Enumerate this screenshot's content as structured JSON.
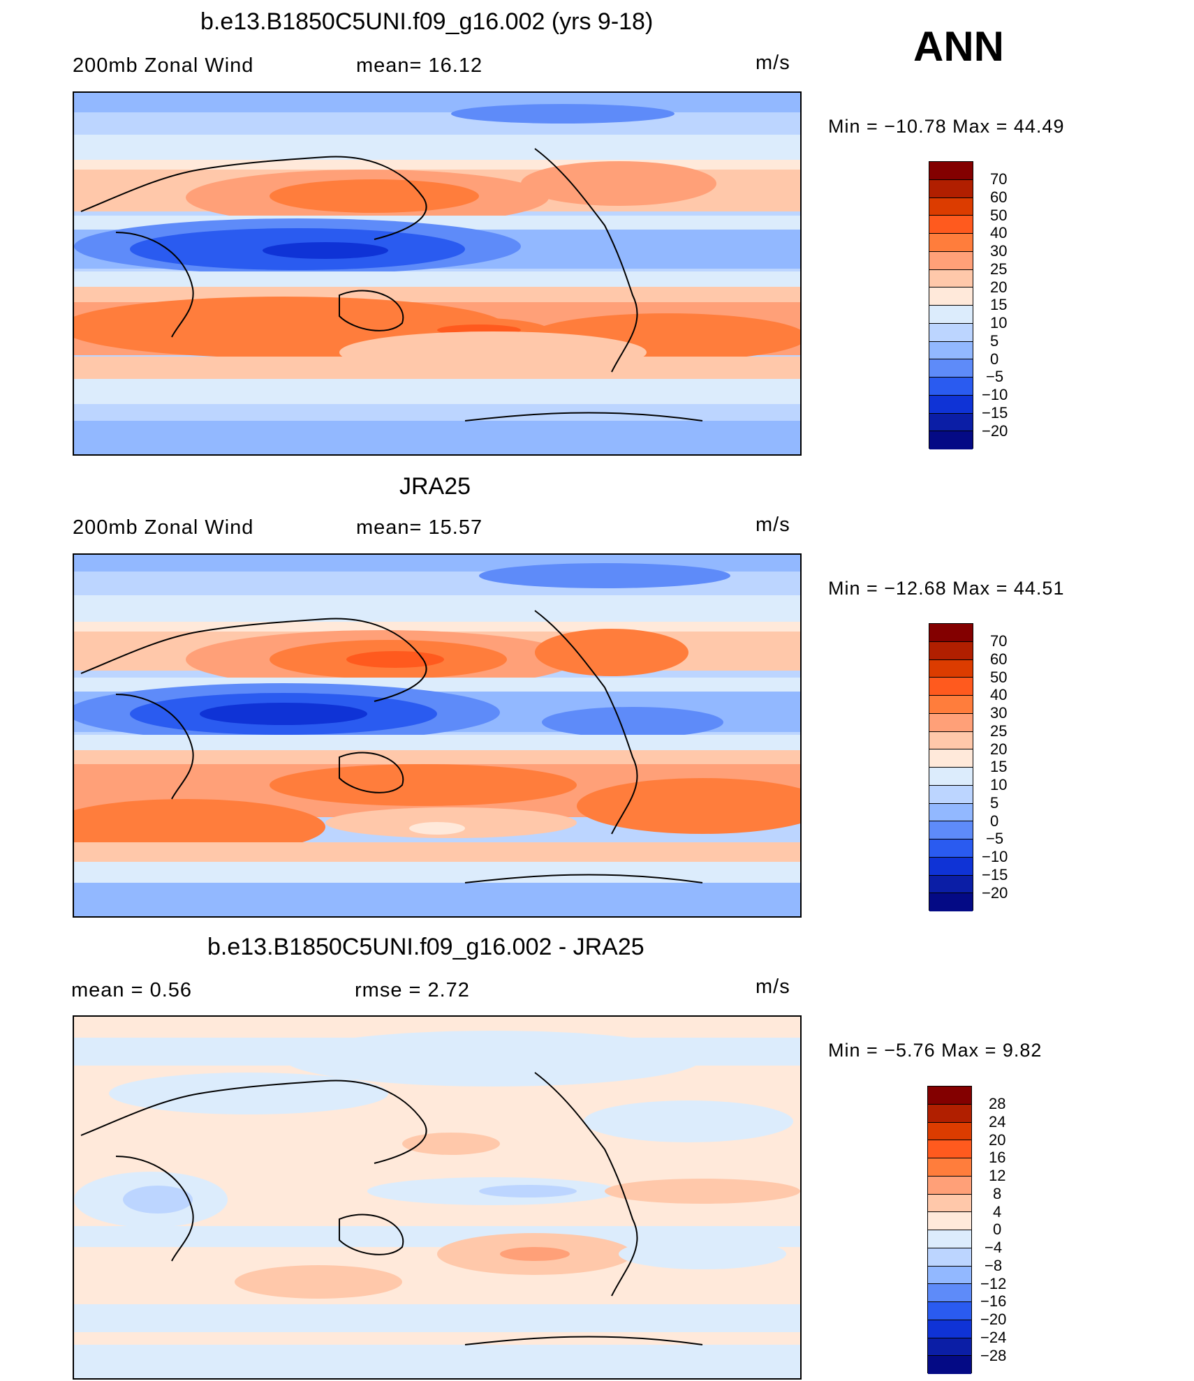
{
  "season": "ANN",
  "units": "m/s",
  "coast_color": "#000000",
  "panels": [
    {
      "title": "b.e13.B1850C5UNI.f09_g16.002 (yrs 9-18)",
      "left_label": "200mb  Zonal  Wind",
      "center_label": "mean=   16.12",
      "right_label": "m/s",
      "min_max": "Min  =  −10.78  Max  =    44.49",
      "colorbar": {
        "labels": [
          "70",
          "60",
          "50",
          "40",
          "30",
          "25",
          "20",
          "15",
          "10",
          "5",
          "0",
          "−5",
          "−10",
          "−15",
          "−20"
        ],
        "colors": [
          "#830000",
          "#b11f00",
          "#dc3c00",
          "#ff5a1e",
          "#ff7d3c",
          "#ffa078",
          "#ffc8aa",
          "#ffe9da",
          "#dcecfc",
          "#bcd5ff",
          "#92b8ff",
          "#5e8bf9",
          "#2a5bf0",
          "#0f33d6",
          "#0b1ea6",
          "#040a85"
        ]
      },
      "chart_data": {
        "type": "heatmap",
        "title": "b.e13.B1850C5UNI.f09_g16.002 (yrs 9-18)",
        "variable": "200mb  Zonal  Wind",
        "units": "m/s",
        "mean": 16.12,
        "min": -10.78,
        "max": 44.49,
        "levels": [
          -20,
          -15,
          -10,
          -5,
          0,
          5,
          10,
          15,
          20,
          25,
          30,
          40,
          50,
          60,
          70
        ]
      }
    },
    {
      "title": "JRA25",
      "left_label": "200mb  Zonal  Wind",
      "center_label": "mean=   15.57",
      "right_label": "m/s",
      "min_max": "Min  =  −12.68  Max  =    44.51",
      "colorbar": {
        "labels": [
          "70",
          "60",
          "50",
          "40",
          "30",
          "25",
          "20",
          "15",
          "10",
          "5",
          "0",
          "−5",
          "−10",
          "−15",
          "−20"
        ],
        "colors": [
          "#830000",
          "#b11f00",
          "#dc3c00",
          "#ff5a1e",
          "#ff7d3c",
          "#ffa078",
          "#ffc8aa",
          "#ffe9da",
          "#dcecfc",
          "#bcd5ff",
          "#92b8ff",
          "#5e8bf9",
          "#2a5bf0",
          "#0f33d6",
          "#0b1ea6",
          "#040a85"
        ]
      },
      "chart_data": {
        "type": "heatmap",
        "title": "JRA25",
        "variable": "200mb  Zonal  Wind",
        "units": "m/s",
        "mean": 15.57,
        "min": -12.68,
        "max": 44.51,
        "levels": [
          -20,
          -15,
          -10,
          -5,
          0,
          5,
          10,
          15,
          20,
          25,
          30,
          40,
          50,
          60,
          70
        ]
      }
    },
    {
      "title": "b.e13.B1850C5UNI.f09_g16.002 - JRA25",
      "left_label": "mean  =     0.56",
      "center_label": "rmse  =     2.72",
      "right_label": "m/s",
      "min_max": "Min  =     −5.76  Max  =     9.82",
      "colorbar": {
        "labels": [
          "28",
          "24",
          "20",
          "16",
          "12",
          "8",
          "4",
          "0",
          "−4",
          "−8",
          "−12",
          "−16",
          "−20",
          "−24",
          "−28"
        ],
        "colors": [
          "#830000",
          "#b11f00",
          "#dc3c00",
          "#ff5a1e",
          "#ff7d3c",
          "#ffa078",
          "#ffc8aa",
          "#ffe9da",
          "#dcecfc",
          "#bcd5ff",
          "#92b8ff",
          "#5e8bf9",
          "#2a5bf0",
          "#0f33d6",
          "#0b1ea6",
          "#040a85"
        ]
      },
      "chart_data": {
        "type": "heatmap",
        "title": "b.e13.B1850C5UNI.f09_g16.002 - JRA25",
        "units": "m/s",
        "mean": 0.56,
        "rmse": 2.72,
        "min": -5.76,
        "max": 9.82,
        "levels": [
          -28,
          -24,
          -20,
          -16,
          -12,
          -8,
          -4,
          0,
          4,
          8,
          12,
          16,
          20,
          24,
          28
        ]
      }
    }
  ]
}
